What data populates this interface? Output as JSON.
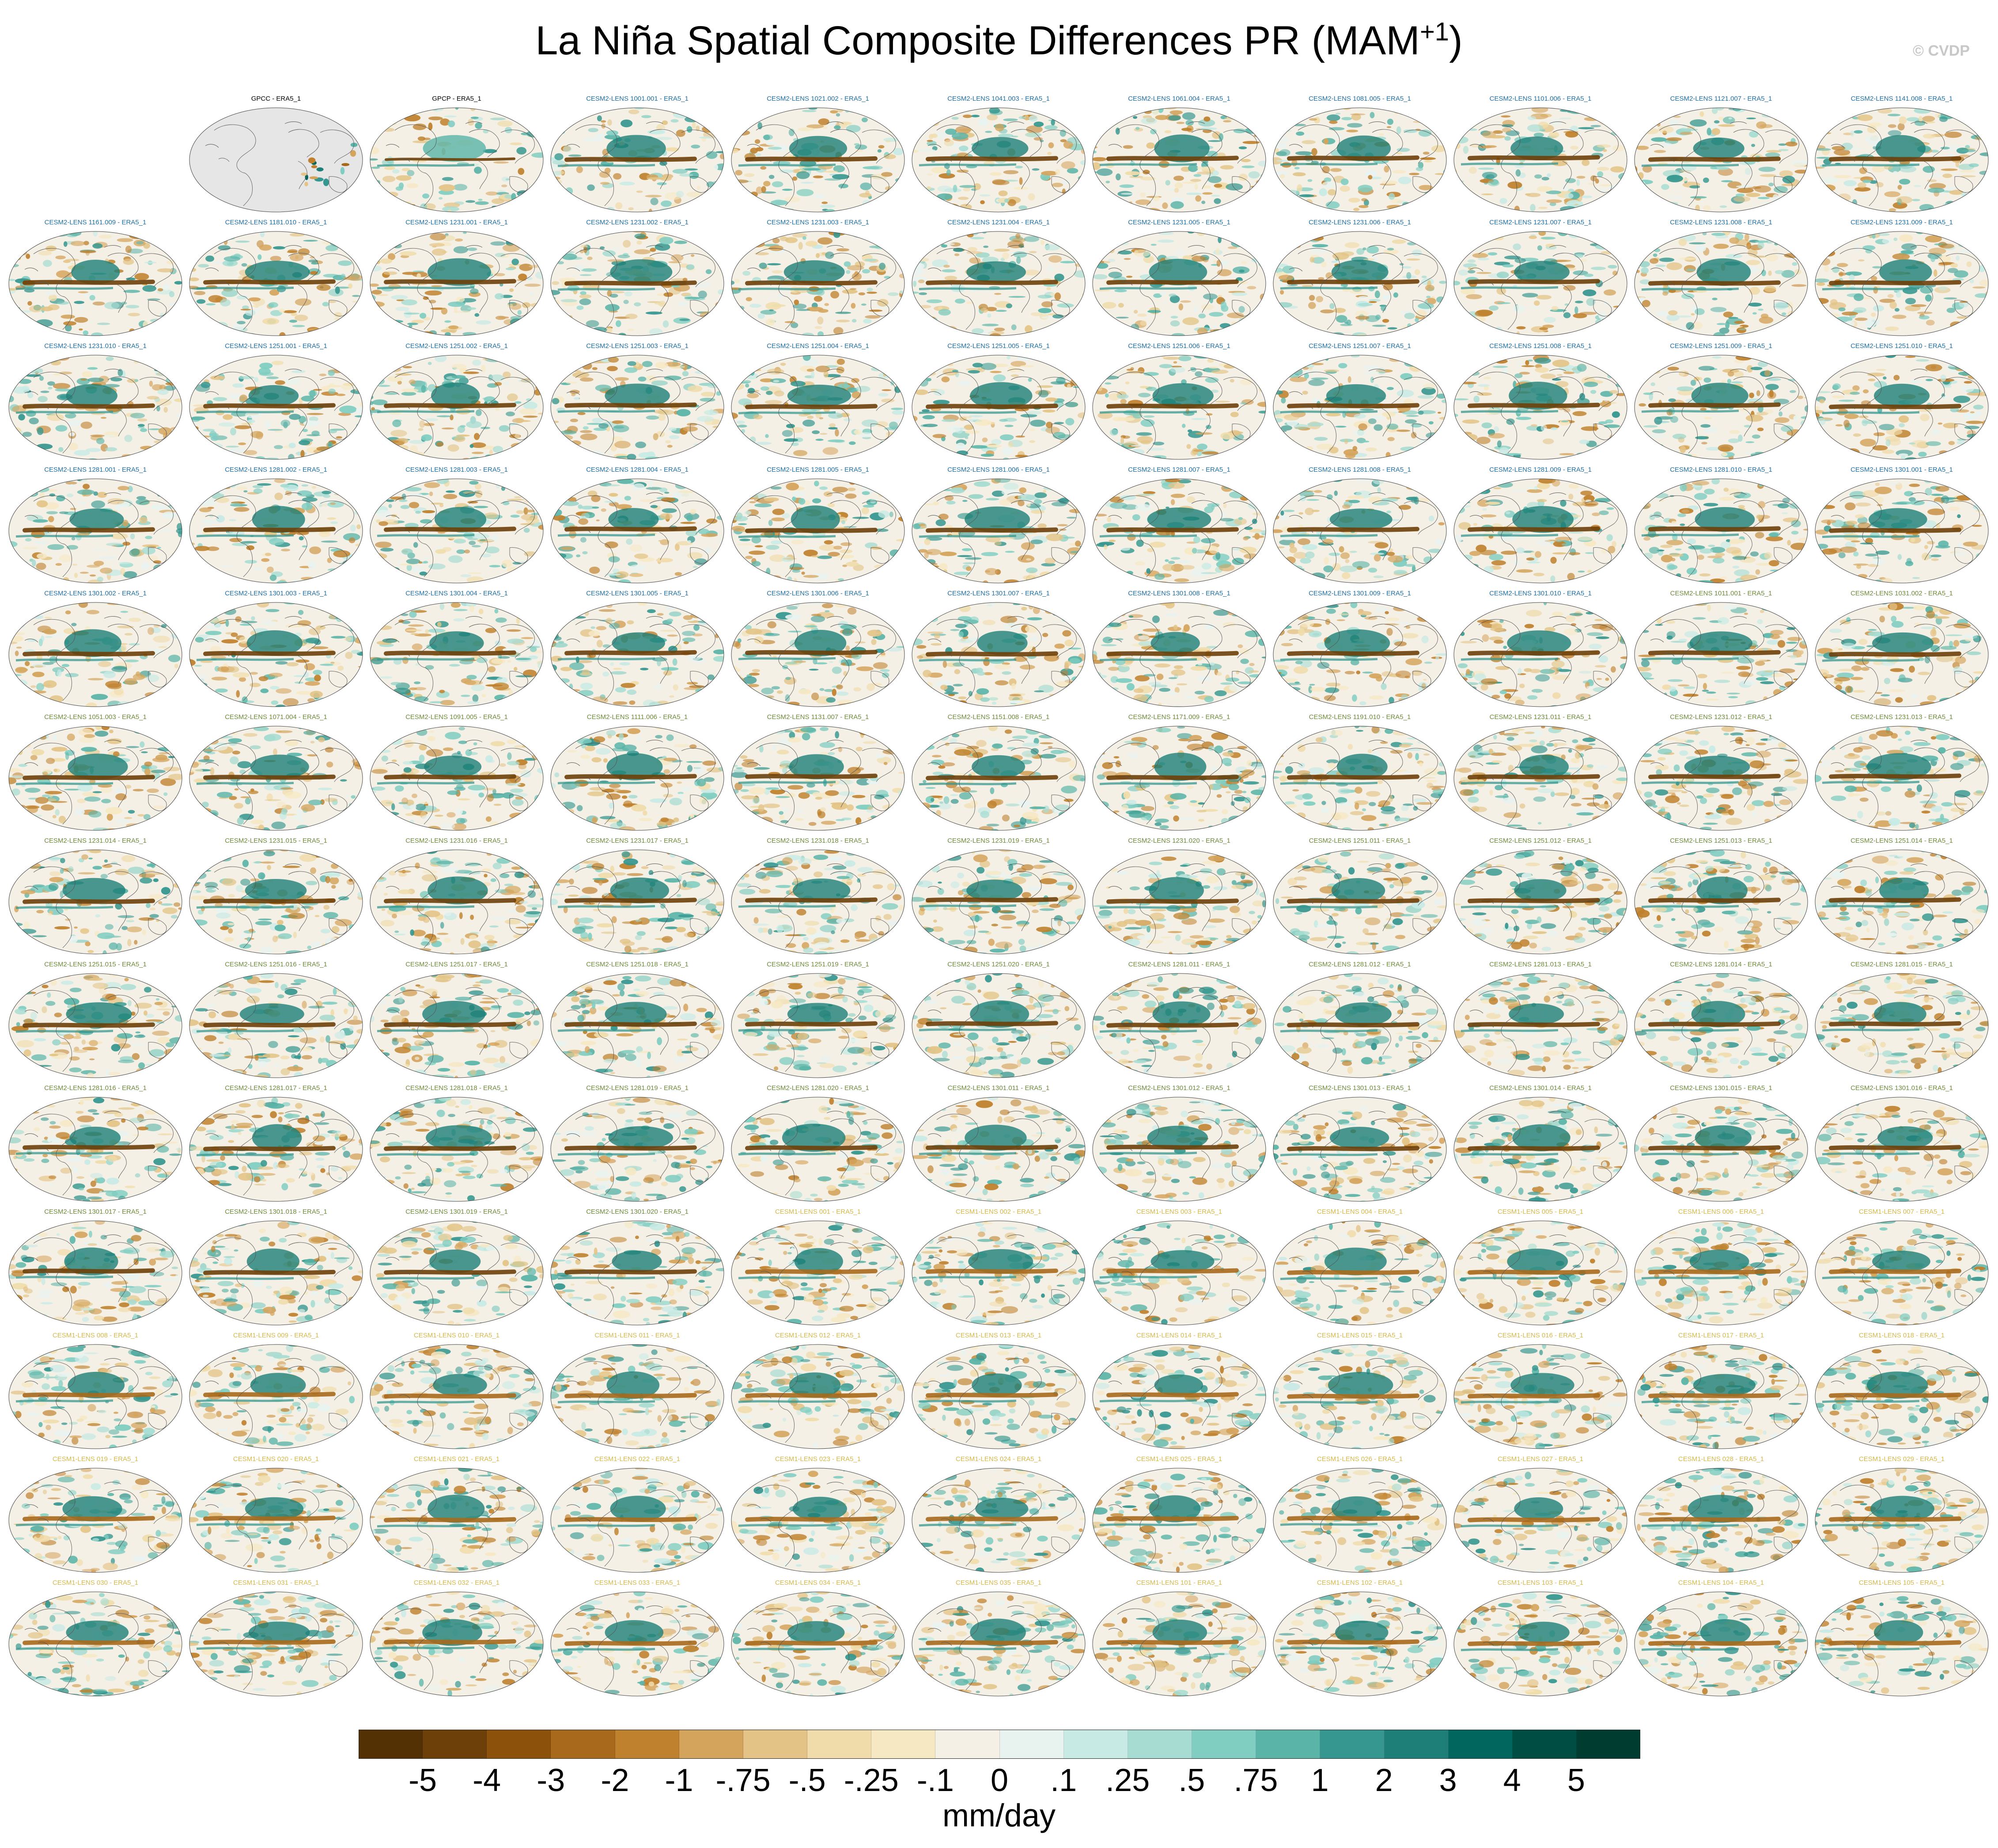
{
  "title": {
    "main": "La Niña Spatial Composite Differences PR (MAM",
    "sup": "+1",
    "close": ")"
  },
  "watermark": "© CVDP",
  "units": "mm/day",
  "colorbar": {
    "colors": [
      "#543005",
      "#6e4009",
      "#8c510a",
      "#a8691c",
      "#bf812d",
      "#d4a45c",
      "#e3c486",
      "#f0dcaa",
      "#f6e8c3",
      "#f5f0e6",
      "#e8f3f0",
      "#c7eae5",
      "#a6dcd2",
      "#80cdc1",
      "#5ab4a8",
      "#35978f",
      "#1d7f77",
      "#01665e",
      "#004d44",
      "#003c30"
    ],
    "labels": [
      "-5",
      "-4",
      "-3",
      "-2",
      "-1",
      "-.75",
      "-.5",
      "-.25",
      "-.1",
      "0",
      ".1",
      ".25",
      ".5",
      ".75",
      "1",
      "2",
      "3",
      "4",
      "5"
    ]
  },
  "title_colors": {
    "obs": "#000000",
    "cesm2_smbb": "#1f6fa5",
    "cesm2_cmip6": "#6f8a3a",
    "cesm1": "#d6b84a"
  },
  "panels": [
    {
      "label": "",
      "kind": "blank"
    },
    {
      "label": "GPCC - ERA5_1",
      "kind": "obs-gpcc"
    },
    {
      "label": "GPCP - ERA5_1",
      "kind": "obs"
    },
    {
      "label": "CESM2-LENS 1001.001 - ERA5_1",
      "kind": "cesm2_smbb"
    },
    {
      "label": "CESM2-LENS 1021.002 - ERA5_1",
      "kind": "cesm2_smbb"
    },
    {
      "label": "CESM2-LENS 1041.003 - ERA5_1",
      "kind": "cesm2_smbb"
    },
    {
      "label": "CESM2-LENS 1061.004 - ERA5_1",
      "kind": "cesm2_smbb"
    },
    {
      "label": "CESM2-LENS 1081.005 - ERA5_1",
      "kind": "cesm2_smbb"
    },
    {
      "label": "CESM2-LENS 1101.006 - ERA5_1",
      "kind": "cesm2_smbb"
    },
    {
      "label": "CESM2-LENS 1121.007 - ERA5_1",
      "kind": "cesm2_smbb"
    },
    {
      "label": "CESM2-LENS 1141.008 - ERA5_1",
      "kind": "cesm2_smbb"
    },
    {
      "label": "CESM2-LENS 1161.009 - ERA5_1",
      "kind": "cesm2_smbb"
    },
    {
      "label": "CESM2-LENS 1181.010 - ERA5_1",
      "kind": "cesm2_smbb"
    },
    {
      "label": "CESM2-LENS 1231.001 - ERA5_1",
      "kind": "cesm2_smbb"
    },
    {
      "label": "CESM2-LENS 1231.002 - ERA5_1",
      "kind": "cesm2_smbb"
    },
    {
      "label": "CESM2-LENS 1231.003 - ERA5_1",
      "kind": "cesm2_smbb"
    },
    {
      "label": "CESM2-LENS 1231.004 - ERA5_1",
      "kind": "cesm2_smbb"
    },
    {
      "label": "CESM2-LENS 1231.005 - ERA5_1",
      "kind": "cesm2_smbb"
    },
    {
      "label": "CESM2-LENS 1231.006 - ERA5_1",
      "kind": "cesm2_smbb"
    },
    {
      "label": "CESM2-LENS 1231.007 - ERA5_1",
      "kind": "cesm2_smbb"
    },
    {
      "label": "CESM2-LENS 1231.008 - ERA5_1",
      "kind": "cesm2_smbb"
    },
    {
      "label": "CESM2-LENS 1231.009 - ERA5_1",
      "kind": "cesm2_smbb"
    },
    {
      "label": "CESM2-LENS 1231.010 - ERA5_1",
      "kind": "cesm2_smbb"
    },
    {
      "label": "CESM2-LENS 1251.001 - ERA5_1",
      "kind": "cesm2_smbb"
    },
    {
      "label": "CESM2-LENS 1251.002 - ERA5_1",
      "kind": "cesm2_smbb"
    },
    {
      "label": "CESM2-LENS 1251.003 - ERA5_1",
      "kind": "cesm2_smbb"
    },
    {
      "label": "CESM2-LENS 1251.004 - ERA5_1",
      "kind": "cesm2_smbb"
    },
    {
      "label": "CESM2-LENS 1251.005 - ERA5_1",
      "kind": "cesm2_smbb"
    },
    {
      "label": "CESM2-LENS 1251.006 - ERA5_1",
      "kind": "cesm2_smbb"
    },
    {
      "label": "CESM2-LENS 1251.007 - ERA5_1",
      "kind": "cesm2_smbb"
    },
    {
      "label": "CESM2-LENS 1251.008 - ERA5_1",
      "kind": "cesm2_smbb"
    },
    {
      "label": "CESM2-LENS 1251.009 - ERA5_1",
      "kind": "cesm2_smbb"
    },
    {
      "label": "CESM2-LENS 1251.010 - ERA5_1",
      "kind": "cesm2_smbb"
    },
    {
      "label": "CESM2-LENS 1281.001 - ERA5_1",
      "kind": "cesm2_smbb"
    },
    {
      "label": "CESM2-LENS 1281.002 - ERA5_1",
      "kind": "cesm2_smbb"
    },
    {
      "label": "CESM2-LENS 1281.003 - ERA5_1",
      "kind": "cesm2_smbb"
    },
    {
      "label": "CESM2-LENS 1281.004 - ERA5_1",
      "kind": "cesm2_smbb"
    },
    {
      "label": "CESM2-LENS 1281.005 - ERA5_1",
      "kind": "cesm2_smbb"
    },
    {
      "label": "CESM2-LENS 1281.006 - ERA5_1",
      "kind": "cesm2_smbb"
    },
    {
      "label": "CESM2-LENS 1281.007 - ERA5_1",
      "kind": "cesm2_smbb"
    },
    {
      "label": "CESM2-LENS 1281.008 - ERA5_1",
      "kind": "cesm2_smbb"
    },
    {
      "label": "CESM2-LENS 1281.009 - ERA5_1",
      "kind": "cesm2_smbb"
    },
    {
      "label": "CESM2-LENS 1281.010 - ERA5_1",
      "kind": "cesm2_smbb"
    },
    {
      "label": "CESM2-LENS 1301.001 - ERA5_1",
      "kind": "cesm2_smbb"
    },
    {
      "label": "CESM2-LENS 1301.002 - ERA5_1",
      "kind": "cesm2_smbb"
    },
    {
      "label": "CESM2-LENS 1301.003 - ERA5_1",
      "kind": "cesm2_smbb"
    },
    {
      "label": "CESM2-LENS 1301.004 - ERA5_1",
      "kind": "cesm2_smbb"
    },
    {
      "label": "CESM2-LENS 1301.005 - ERA5_1",
      "kind": "cesm2_smbb"
    },
    {
      "label": "CESM2-LENS 1301.006 - ERA5_1",
      "kind": "cesm2_smbb"
    },
    {
      "label": "CESM2-LENS 1301.007 - ERA5_1",
      "kind": "cesm2_smbb"
    },
    {
      "label": "CESM2-LENS 1301.008 - ERA5_1",
      "kind": "cesm2_smbb"
    },
    {
      "label": "CESM2-LENS 1301.009 - ERA5_1",
      "kind": "cesm2_smbb"
    },
    {
      "label": "CESM2-LENS 1301.010 - ERA5_1",
      "kind": "cesm2_smbb"
    },
    {
      "label": "CESM2-LENS 1011.001 - ERA5_1",
      "kind": "cesm2_cmip6"
    },
    {
      "label": "CESM2-LENS 1031.002 - ERA5_1",
      "kind": "cesm2_cmip6"
    },
    {
      "label": "CESM2-LENS 1051.003 - ERA5_1",
      "kind": "cesm2_cmip6"
    },
    {
      "label": "CESM2-LENS 1071.004 - ERA5_1",
      "kind": "cesm2_cmip6"
    },
    {
      "label": "CESM2-LENS 1091.005 - ERA5_1",
      "kind": "cesm2_cmip6"
    },
    {
      "label": "CESM2-LENS 1111.006 - ERA5_1",
      "kind": "cesm2_cmip6"
    },
    {
      "label": "CESM2-LENS 1131.007 - ERA5_1",
      "kind": "cesm2_cmip6"
    },
    {
      "label": "CESM2-LENS 1151.008 - ERA5_1",
      "kind": "cesm2_cmip6"
    },
    {
      "label": "CESM2-LENS 1171.009 - ERA5_1",
      "kind": "cesm2_cmip6"
    },
    {
      "label": "CESM2-LENS 1191.010 - ERA5_1",
      "kind": "cesm2_cmip6"
    },
    {
      "label": "CESM2-LENS 1231.011 - ERA5_1",
      "kind": "cesm2_cmip6"
    },
    {
      "label": "CESM2-LENS 1231.012 - ERA5_1",
      "kind": "cesm2_cmip6"
    },
    {
      "label": "CESM2-LENS 1231.013 - ERA5_1",
      "kind": "cesm2_cmip6"
    },
    {
      "label": "CESM2-LENS 1231.014 - ERA5_1",
      "kind": "cesm2_cmip6"
    },
    {
      "label": "CESM2-LENS 1231.015 - ERA5_1",
      "kind": "cesm2_cmip6"
    },
    {
      "label": "CESM2-LENS 1231.016 - ERA5_1",
      "kind": "cesm2_cmip6"
    },
    {
      "label": "CESM2-LENS 1231.017 - ERA5_1",
      "kind": "cesm2_cmip6"
    },
    {
      "label": "CESM2-LENS 1231.018 - ERA5_1",
      "kind": "cesm2_cmip6"
    },
    {
      "label": "CESM2-LENS 1231.019 - ERA5_1",
      "kind": "cesm2_cmip6"
    },
    {
      "label": "CESM2-LENS 1231.020 - ERA5_1",
      "kind": "cesm2_cmip6"
    },
    {
      "label": "CESM2-LENS 1251.011 - ERA5_1",
      "kind": "cesm2_cmip6"
    },
    {
      "label": "CESM2-LENS 1251.012 - ERA5_1",
      "kind": "cesm2_cmip6"
    },
    {
      "label": "CESM2-LENS 1251.013 - ERA5_1",
      "kind": "cesm2_cmip6"
    },
    {
      "label": "CESM2-LENS 1251.014 - ERA5_1",
      "kind": "cesm2_cmip6"
    },
    {
      "label": "CESM2-LENS 1251.015 - ERA5_1",
      "kind": "cesm2_cmip6"
    },
    {
      "label": "CESM2-LENS 1251.016 - ERA5_1",
      "kind": "cesm2_cmip6"
    },
    {
      "label": "CESM2-LENS 1251.017 - ERA5_1",
      "kind": "cesm2_cmip6"
    },
    {
      "label": "CESM2-LENS 1251.018 - ERA5_1",
      "kind": "cesm2_cmip6"
    },
    {
      "label": "CESM2-LENS 1251.019 - ERA5_1",
      "kind": "cesm2_cmip6"
    },
    {
      "label": "CESM2-LENS 1251.020 - ERA5_1",
      "kind": "cesm2_cmip6"
    },
    {
      "label": "CESM2-LENS 1281.011 - ERA5_1",
      "kind": "cesm2_cmip6"
    },
    {
      "label": "CESM2-LENS 1281.012 - ERA5_1",
      "kind": "cesm2_cmip6"
    },
    {
      "label": "CESM2-LENS 1281.013 - ERA5_1",
      "kind": "cesm2_cmip6"
    },
    {
      "label": "CESM2-LENS 1281.014 - ERA5_1",
      "kind": "cesm2_cmip6"
    },
    {
      "label": "CESM2-LENS 1281.015 - ERA5_1",
      "kind": "cesm2_cmip6"
    },
    {
      "label": "CESM2-LENS 1281.016 - ERA5_1",
      "kind": "cesm2_cmip6"
    },
    {
      "label": "CESM2-LENS 1281.017 - ERA5_1",
      "kind": "cesm2_cmip6"
    },
    {
      "label": "CESM2-LENS 1281.018 - ERA5_1",
      "kind": "cesm2_cmip6"
    },
    {
      "label": "CESM2-LENS 1281.019 - ERA5_1",
      "kind": "cesm2_cmip6"
    },
    {
      "label": "CESM2-LENS 1281.020 - ERA5_1",
      "kind": "cesm2_cmip6"
    },
    {
      "label": "CESM2-LENS 1301.011 - ERA5_1",
      "kind": "cesm2_cmip6"
    },
    {
      "label": "CESM2-LENS 1301.012 - ERA5_1",
      "kind": "cesm2_cmip6"
    },
    {
      "label": "CESM2-LENS 1301.013 - ERA5_1",
      "kind": "cesm2_cmip6"
    },
    {
      "label": "CESM2-LENS 1301.014 - ERA5_1",
      "kind": "cesm2_cmip6"
    },
    {
      "label": "CESM2-LENS 1301.015 - ERA5_1",
      "kind": "cesm2_cmip6"
    },
    {
      "label": "CESM2-LENS 1301.016 - ERA5_1",
      "kind": "cesm2_cmip6"
    },
    {
      "label": "CESM2-LENS 1301.017 - ERA5_1",
      "kind": "cesm2_cmip6"
    },
    {
      "label": "CESM2-LENS 1301.018 - ERA5_1",
      "kind": "cesm2_cmip6"
    },
    {
      "label": "CESM2-LENS 1301.019 - ERA5_1",
      "kind": "cesm2_cmip6"
    },
    {
      "label": "CESM2-LENS 1301.020 - ERA5_1",
      "kind": "cesm2_cmip6"
    },
    {
      "label": "CESM1-LENS 001 - ERA5_1",
      "kind": "cesm1"
    },
    {
      "label": "CESM1-LENS 002 - ERA5_1",
      "kind": "cesm1"
    },
    {
      "label": "CESM1-LENS 003 - ERA5_1",
      "kind": "cesm1"
    },
    {
      "label": "CESM1-LENS 004 - ERA5_1",
      "kind": "cesm1"
    },
    {
      "label": "CESM1-LENS 005 - ERA5_1",
      "kind": "cesm1"
    },
    {
      "label": "CESM1-LENS 006 - ERA5_1",
      "kind": "cesm1"
    },
    {
      "label": "CESM1-LENS 007 - ERA5_1",
      "kind": "cesm1"
    },
    {
      "label": "CESM1-LENS 008 - ERA5_1",
      "kind": "cesm1"
    },
    {
      "label": "CESM1-LENS 009 - ERA5_1",
      "kind": "cesm1"
    },
    {
      "label": "CESM1-LENS 010 - ERA5_1",
      "kind": "cesm1"
    },
    {
      "label": "CESM1-LENS 011 - ERA5_1",
      "kind": "cesm1"
    },
    {
      "label": "CESM1-LENS 012 - ERA5_1",
      "kind": "cesm1"
    },
    {
      "label": "CESM1-LENS 013 - ERA5_1",
      "kind": "cesm1"
    },
    {
      "label": "CESM1-LENS 014 - ERA5_1",
      "kind": "cesm1"
    },
    {
      "label": "CESM1-LENS 015 - ERA5_1",
      "kind": "cesm1"
    },
    {
      "label": "CESM1-LENS 016 - ERA5_1",
      "kind": "cesm1"
    },
    {
      "label": "CESM1-LENS 017 - ERA5_1",
      "kind": "cesm1"
    },
    {
      "label": "CESM1-LENS 018 - ERA5_1",
      "kind": "cesm1"
    },
    {
      "label": "CESM1-LENS 019 - ERA5_1",
      "kind": "cesm1"
    },
    {
      "label": "CESM1-LENS 020 - ERA5_1",
      "kind": "cesm1"
    },
    {
      "label": "CESM1-LENS 021 - ERA5_1",
      "kind": "cesm1"
    },
    {
      "label": "CESM1-LENS 022 - ERA5_1",
      "kind": "cesm1"
    },
    {
      "label": "CESM1-LENS 023 - ERA5_1",
      "kind": "cesm1"
    },
    {
      "label": "CESM1-LENS 024 - ERA5_1",
      "kind": "cesm1"
    },
    {
      "label": "CESM1-LENS 025 - ERA5_1",
      "kind": "cesm1"
    },
    {
      "label": "CESM1-LENS 026 - ERA5_1",
      "kind": "cesm1"
    },
    {
      "label": "CESM1-LENS 027 - ERA5_1",
      "kind": "cesm1"
    },
    {
      "label": "CESM1-LENS 028 - ERA5_1",
      "kind": "cesm1"
    },
    {
      "label": "CESM1-LENS 029 - ERA5_1",
      "kind": "cesm1"
    },
    {
      "label": "CESM1-LENS 030 - ERA5_1",
      "kind": "cesm1"
    },
    {
      "label": "CESM1-LENS 031 - ERA5_1",
      "kind": "cesm1"
    },
    {
      "label": "CESM1-LENS 032 - ERA5_1",
      "kind": "cesm1"
    },
    {
      "label": "CESM1-LENS 033 - ERA5_1",
      "kind": "cesm1"
    },
    {
      "label": "CESM1-LENS 034 - ERA5_1",
      "kind": "cesm1"
    },
    {
      "label": "CESM1-LENS 035 - ERA5_1",
      "kind": "cesm1"
    },
    {
      "label": "CESM1-LENS 101 - ERA5_1",
      "kind": "cesm1"
    },
    {
      "label": "CESM1-LENS 102 - ERA5_1",
      "kind": "cesm1"
    },
    {
      "label": "CESM1-LENS 103 - ERA5_1",
      "kind": "cesm1"
    },
    {
      "label": "CESM1-LENS 104 - ERA5_1",
      "kind": "cesm1"
    },
    {
      "label": "CESM1-LENS 105 - ERA5_1",
      "kind": "cesm1"
    }
  ]
}
